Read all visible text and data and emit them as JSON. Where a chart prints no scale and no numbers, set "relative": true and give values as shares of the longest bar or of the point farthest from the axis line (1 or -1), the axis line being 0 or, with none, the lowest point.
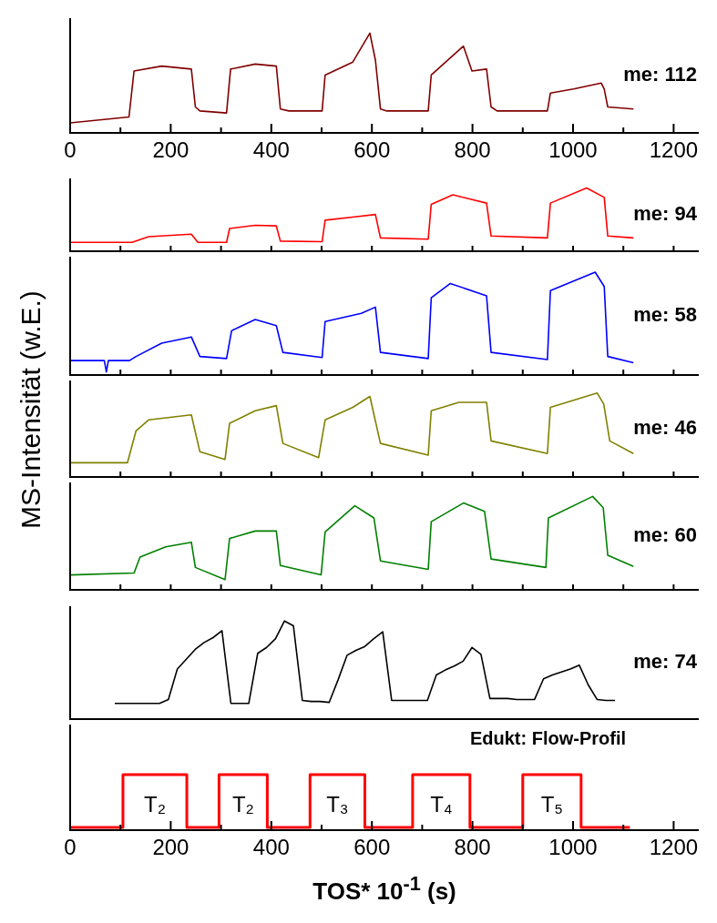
{
  "chart_data": [
    {
      "type": "line",
      "relative": true,
      "xlim": [
        0,
        1250
      ],
      "xticks": [
        0,
        {
          "value": 100,
          "label": null
        },
        200,
        {
          "value": 300,
          "label": null
        },
        400,
        {
          "value": 500,
          "label": null
        },
        600,
        {
          "value": 700,
          "label": null
        },
        800,
        {
          "value": 900,
          "label": null
        },
        1000,
        {
          "value": 1100,
          "label": null
        },
        1200
      ],
      "tick_labels": "x",
      "marker": "none",
      "series": [
        {
          "name": "me: 112",
          "color": "#800000",
          "x": [
            0,
            117,
            127,
            182,
            241,
            249,
            258,
            311,
            319,
            368,
            410,
            418,
            435,
            501,
            507,
            562,
            596,
            607,
            617,
            630,
            712,
            718,
            782,
            799,
            828,
            837,
            849,
            949,
            955,
            1001,
            1056,
            1062,
            1069,
            1120
          ],
          "values": [
            0.1,
            0.16,
            0.62,
            0.67,
            0.64,
            0.26,
            0.22,
            0.2,
            0.64,
            0.69,
            0.67,
            0.24,
            0.22,
            0.22,
            0.58,
            0.71,
            1,
            0.73,
            0.24,
            0.22,
            0.22,
            0.58,
            0.87,
            0.62,
            0.64,
            0.26,
            0.22,
            0.22,
            0.4,
            0.44,
            0.5,
            0.44,
            0.26,
            0.24
          ]
        }
      ]
    },
    {
      "type": "line",
      "relative": true,
      "xlim": [
        0,
        1250
      ],
      "xticks": [
        0,
        {
          "value": 100,
          "label": null
        },
        {
          "value": 200,
          "label": null
        },
        {
          "value": 300,
          "label": null
        },
        {
          "value": 400,
          "label": null
        },
        {
          "value": 500,
          "label": null
        },
        {
          "value": 600,
          "label": null
        },
        {
          "value": 700,
          "label": null
        },
        {
          "value": 800,
          "label": null
        },
        {
          "value": 900,
          "label": null
        },
        {
          "value": 1000,
          "label": null
        },
        {
          "value": 1100,
          "label": null
        },
        {
          "value": 1200,
          "label": null
        }
      ],
      "tick_labels": false,
      "marker": "none",
      "series": [
        {
          "name": "me: 94",
          "color": "#ff0000",
          "x": [
            0,
            123,
            156,
            241,
            254,
            311,
            317,
            368,
            410,
            418,
            501,
            507,
            562,
            607,
            617,
            712,
            718,
            761,
            828,
            837,
            949,
            955,
            1027,
            1062,
            1069,
            1120
          ],
          "values": [
            0.14,
            0.14,
            0.23,
            0.27,
            0.14,
            0.14,
            0.36,
            0.41,
            0.4,
            0.16,
            0.15,
            0.49,
            0.54,
            0.58,
            0.21,
            0.19,
            0.74,
            0.89,
            0.76,
            0.24,
            0.21,
            0.76,
            1,
            0.85,
            0.24,
            0.21
          ]
        }
      ]
    },
    {
      "type": "line",
      "relative": true,
      "xlim": [
        0,
        1250
      ],
      "xticks": [
        0,
        {
          "value": 100,
          "label": null
        },
        {
          "value": 200,
          "label": null
        },
        {
          "value": 300,
          "label": null
        },
        {
          "value": 400,
          "label": null
        },
        {
          "value": 500,
          "label": null
        },
        {
          "value": 600,
          "label": null
        },
        {
          "value": 700,
          "label": null
        },
        {
          "value": 800,
          "label": null
        },
        {
          "value": 900,
          "label": null
        },
        {
          "value": 1000,
          "label": null
        },
        {
          "value": 1100,
          "label": null
        },
        {
          "value": 1200,
          "label": null
        }
      ],
      "tick_labels": false,
      "marker": "none",
      "series": [
        {
          "name": "me: 58",
          "color": "#0000ff",
          "x": [
            0,
            68,
            72,
            76,
            118,
            131,
            182,
            241,
            258,
            311,
            321,
            368,
            410,
            423,
            501,
            507,
            579,
            607,
            617,
            712,
            718,
            756,
            828,
            837,
            949,
            955,
            1044,
            1062,
            1069,
            1120
          ],
          "values": [
            0.14,
            0.14,
            0.03,
            0.14,
            0.14,
            0.18,
            0.31,
            0.37,
            0.18,
            0.16,
            0.43,
            0.54,
            0.48,
            0.22,
            0.17,
            0.52,
            0.6,
            0.66,
            0.22,
            0.16,
            0.75,
            0.89,
            0.77,
            0.22,
            0.15,
            0.82,
            1,
            0.86,
            0.18,
            0.12
          ]
        }
      ]
    },
    {
      "type": "line",
      "relative": true,
      "ylabel": "MS-Intensität (w.E.)",
      "xlim": [
        0,
        1250
      ],
      "xticks": [
        0,
        {
          "value": 100,
          "label": null
        },
        {
          "value": 200,
          "label": null
        },
        {
          "value": 300,
          "label": null
        },
        {
          "value": 400,
          "label": null
        },
        {
          "value": 500,
          "label": null
        },
        {
          "value": 600,
          "label": null
        },
        {
          "value": 700,
          "label": null
        },
        {
          "value": 800,
          "label": null
        },
        {
          "value": 900,
          "label": null
        },
        {
          "value": 1000,
          "label": null
        },
        {
          "value": 1100,
          "label": null
        },
        {
          "value": 1200,
          "label": null
        }
      ],
      "tick_labels": false,
      "marker": "none",
      "series": [
        {
          "name": "me: 46",
          "color": "#808000",
          "x": [
            0,
            114,
            131,
            156,
            241,
            258,
            308,
            317,
            368,
            410,
            423,
            494,
            507,
            562,
            596,
            617,
            712,
            718,
            773,
            828,
            837,
            949,
            955,
            1048,
            1061,
            1073,
            1120
          ],
          "values": [
            0.17,
            0.17,
            0.55,
            0.68,
            0.74,
            0.3,
            0.21,
            0.64,
            0.79,
            0.85,
            0.4,
            0.23,
            0.68,
            0.83,
            0.96,
            0.4,
            0.26,
            0.79,
            0.89,
            0.89,
            0.43,
            0.28,
            0.83,
            1,
            0.87,
            0.43,
            0.28
          ]
        }
      ]
    },
    {
      "type": "line",
      "relative": true,
      "xlim": [
        0,
        1250
      ],
      "xticks": [
        0,
        {
          "value": 100,
          "label": null
        },
        {
          "value": 200,
          "label": null
        },
        {
          "value": 300,
          "label": null
        },
        {
          "value": 400,
          "label": null
        },
        {
          "value": 500,
          "label": null
        },
        {
          "value": 600,
          "label": null
        },
        {
          "value": 700,
          "label": null
        },
        {
          "value": 800,
          "label": null
        },
        {
          "value": 900,
          "label": null
        },
        {
          "value": 1000,
          "label": null
        },
        {
          "value": 1100,
          "label": null
        },
        {
          "value": 1200,
          "label": null
        }
      ],
      "tick_labels": false,
      "marker": "none",
      "series": [
        {
          "name": "me: 60",
          "color": "#008000",
          "x": [
            0,
            127,
            139,
            190,
            241,
            249,
            308,
            317,
            368,
            410,
            418,
            499,
            507,
            566,
            604,
            617,
            712,
            718,
            782,
            824,
            837,
            946,
            951,
            1039,
            1060,
            1069,
            1120
          ],
          "values": [
            0.16,
            0.18,
            0.35,
            0.46,
            0.51,
            0.24,
            0.11,
            0.55,
            0.63,
            0.63,
            0.26,
            0.16,
            0.62,
            0.9,
            0.77,
            0.31,
            0.22,
            0.73,
            0.93,
            0.84,
            0.33,
            0.24,
            0.77,
            1,
            0.88,
            0.37,
            0.25
          ]
        }
      ]
    },
    {
      "type": "line",
      "relative": true,
      "categories": [
        null,
        null,
        null,
        null,
        null,
        null,
        null,
        null,
        null,
        null,
        null,
        null,
        null,
        null,
        null,
        null,
        null,
        null,
        null,
        null,
        null,
        null,
        null,
        null,
        null,
        null,
        null,
        null,
        null,
        null,
        null,
        null,
        null,
        null,
        null,
        null,
        null,
        null,
        null,
        null,
        null,
        null,
        null,
        null,
        null,
        null,
        null,
        null,
        null,
        null,
        null,
        null,
        null,
        null,
        null,
        null,
        null
      ],
      "tick_labels": false,
      "marker": "none",
      "series": [
        {
          "name": "me: 74",
          "color": "#000000",
          "values": [
            0.16,
            0.16,
            0.16,
            0.16,
            0.16,
            0.16,
            0.2,
            0.51,
            0.61,
            0.71,
            0.78,
            0.83,
            0.9,
            0.16,
            0.16,
            0.16,
            0.67,
            0.73,
            0.82,
            1,
            0.95,
            0.19,
            0.18,
            0.18,
            0.17,
            0.4,
            0.65,
            0.7,
            0.74,
            0.82,
            0.89,
            0.19,
            0.19,
            0.19,
            0.19,
            0.19,
            0.45,
            0.5,
            0.54,
            0.59,
            0.73,
            0.66,
            0.21,
            0.21,
            0.21,
            0.2,
            0.2,
            0.2,
            0.41,
            0.45,
            0.48,
            0.51,
            0.55,
            0.35,
            0.2,
            0.19,
            0.19
          ]
        }
      ]
    },
    {
      "type": "step",
      "relative": true,
      "xlabel": "TOS* 10$^{-1}$ (s)",
      "xlim": [
        0,
        1250
      ],
      "xticks": [
        0,
        {
          "value": 100,
          "label": null
        },
        200,
        {
          "value": 300,
          "label": null
        },
        400,
        {
          "value": 500,
          "label": null
        },
        600,
        {
          "value": 700,
          "label": null
        },
        800,
        {
          "value": 900,
          "label": null
        },
        1000,
        {
          "value": 1100,
          "label": null
        },
        1200
      ],
      "tick_labels": "x",
      "marker": "none",
      "annotations": [
        "Edukt: Flow-Profil",
        "T₂",
        "T₂",
        "T₃",
        "T₄",
        "T₅"
      ],
      "series": [
        {
          "color": "#ff0000",
          "x": [
            0,
            105,
            232,
            296,
            392,
            477,
            586,
            681,
            795,
            900,
            1016,
            1113
          ],
          "values": [
            0.05,
            1,
            0.05,
            1,
            0.05,
            1,
            0.05,
            1,
            0.05,
            1,
            0.05,
            0.05
          ]
        }
      ]
    }
  ]
}
